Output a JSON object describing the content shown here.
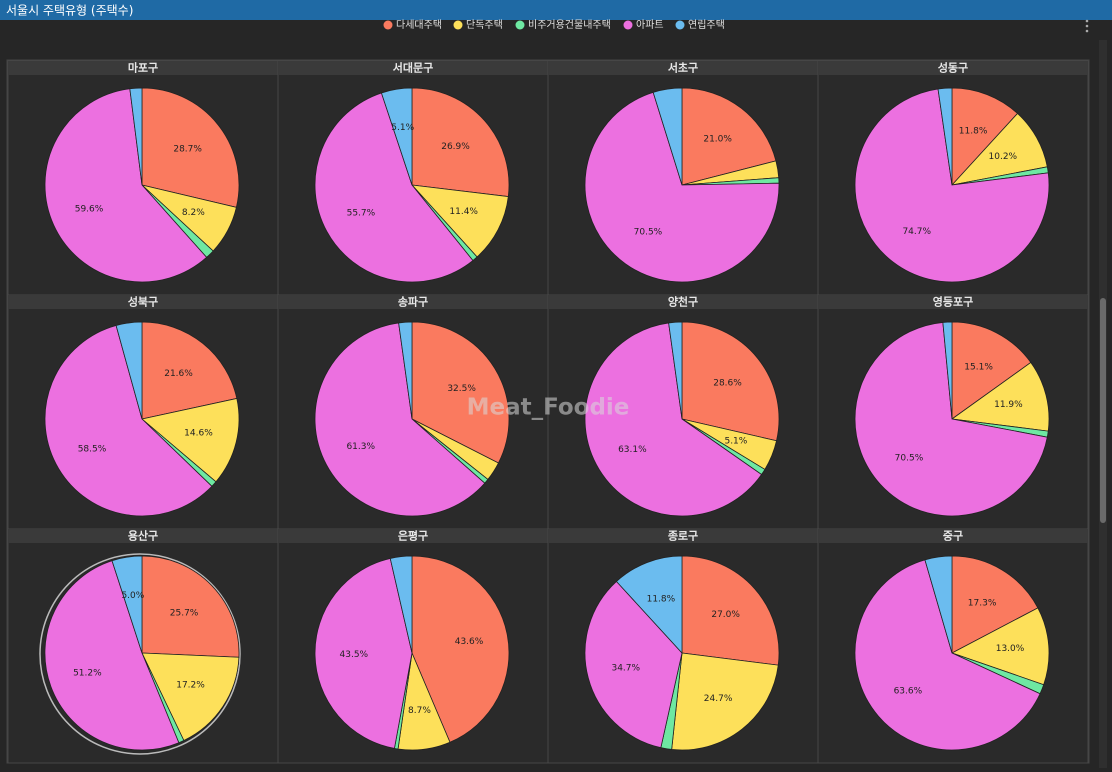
{
  "header": {
    "title": "서울시 주택유형 (주택수)"
  },
  "watermark": "Meat_Foodie",
  "chart_data": [
    {
      "type": "pie",
      "title": "마포구",
      "categories": [
        "다세대주택",
        "단독주택",
        "비주거용건물내주택",
        "아파트",
        "연립주택"
      ],
      "colors": [
        "#fa7a5f",
        "#fde05a",
        "#6ee8a2",
        "#ec70e0",
        "#6bbcef"
      ],
      "values": [
        28.7,
        8.2,
        1.5,
        59.6,
        2.0
      ],
      "value_labels": [
        "28.7%",
        "8.2%",
        null,
        "59.6%",
        null
      ]
    },
    {
      "type": "pie",
      "title": "서대문구",
      "categories": [
        "다세대주택",
        "단독주택",
        "비주거용건물내주택",
        "아파트",
        "연립주택"
      ],
      "colors": [
        "#fa7a5f",
        "#fde05a",
        "#6ee8a2",
        "#ec70e0",
        "#6bbcef"
      ],
      "values": [
        26.9,
        11.4,
        0.9,
        55.7,
        5.1
      ],
      "value_labels": [
        "26.9%",
        "11.4%",
        null,
        "55.7%",
        "5.1%"
      ]
    },
    {
      "type": "pie",
      "title": "서초구",
      "categories": [
        "다세대주택",
        "단독주택",
        "비주거용건물내주택",
        "아파트",
        "연립주택"
      ],
      "colors": [
        "#fa7a5f",
        "#fde05a",
        "#6ee8a2",
        "#ec70e0",
        "#6bbcef"
      ],
      "values": [
        21.0,
        2.8,
        0.9,
        70.5,
        4.8
      ],
      "value_labels": [
        "21.0%",
        null,
        null,
        "70.5%",
        null
      ]
    },
    {
      "type": "pie",
      "title": "성동구",
      "categories": [
        "다세대주택",
        "단독주택",
        "비주거용건물내주택",
        "아파트",
        "연립주택"
      ],
      "colors": [
        "#fa7a5f",
        "#fde05a",
        "#6ee8a2",
        "#ec70e0",
        "#6bbcef"
      ],
      "values": [
        11.8,
        10.2,
        1.0,
        74.7,
        2.3
      ],
      "value_labels": [
        "11.8%",
        "10.2%",
        null,
        "74.7%",
        null
      ]
    },
    {
      "type": "pie",
      "title": "성북구",
      "categories": [
        "다세대주택",
        "단독주택",
        "비주거용건물내주택",
        "아파트",
        "연립주택"
      ],
      "colors": [
        "#fa7a5f",
        "#fde05a",
        "#6ee8a2",
        "#ec70e0",
        "#6bbcef"
      ],
      "values": [
        21.6,
        14.6,
        1.0,
        58.5,
        4.3
      ],
      "value_labels": [
        "21.6%",
        "14.6%",
        null,
        "58.5%",
        null
      ]
    },
    {
      "type": "pie",
      "title": "송파구",
      "categories": [
        "다세대주택",
        "단독주택",
        "비주거용건물내주택",
        "아파트",
        "연립주택"
      ],
      "colors": [
        "#fa7a5f",
        "#fde05a",
        "#6ee8a2",
        "#ec70e0",
        "#6bbcef"
      ],
      "values": [
        32.5,
        3.2,
        0.8,
        61.3,
        2.2
      ],
      "value_labels": [
        "32.5%",
        null,
        null,
        "61.3%",
        null
      ]
    },
    {
      "type": "pie",
      "title": "양천구",
      "categories": [
        "다세대주택",
        "단독주택",
        "비주거용건물내주택",
        "아파트",
        "연립주택"
      ],
      "colors": [
        "#fa7a5f",
        "#fde05a",
        "#6ee8a2",
        "#ec70e0",
        "#6bbcef"
      ],
      "values": [
        28.6,
        5.1,
        1.0,
        63.1,
        2.2
      ],
      "value_labels": [
        "28.6%",
        "5.1%",
        null,
        "63.1%",
        null
      ]
    },
    {
      "type": "pie",
      "title": "영등포구",
      "categories": [
        "다세대주택",
        "단독주택",
        "비주거용건물내주택",
        "아파트",
        "연립주택"
      ],
      "colors": [
        "#fa7a5f",
        "#fde05a",
        "#6ee8a2",
        "#ec70e0",
        "#6bbcef"
      ],
      "values": [
        15.1,
        11.9,
        1.0,
        70.5,
        1.5
      ],
      "value_labels": [
        "15.1%",
        "11.9%",
        null,
        "70.5%",
        null
      ]
    },
    {
      "type": "pie",
      "title": "용산구",
      "categories": [
        "다세대주택",
        "단독주택",
        "비주거용건물내주택",
        "아파트",
        "연립주택"
      ],
      "colors": [
        "#fa7a5f",
        "#fde05a",
        "#6ee8a2",
        "#ec70e0",
        "#6bbcef"
      ],
      "values": [
        25.7,
        17.2,
        0.9,
        51.2,
        5.0
      ],
      "value_labels": [
        "25.7%",
        "17.2%",
        null,
        "51.2%",
        "5.0%"
      ]
    },
    {
      "type": "pie",
      "title": "은평구",
      "categories": [
        "다세대주택",
        "단독주택",
        "비주거용건물내주택",
        "아파트",
        "연립주택"
      ],
      "colors": [
        "#fa7a5f",
        "#fde05a",
        "#6ee8a2",
        "#ec70e0",
        "#6bbcef"
      ],
      "values": [
        43.6,
        8.7,
        0.6,
        43.5,
        3.6
      ],
      "value_labels": [
        "43.6%",
        "8.7%",
        null,
        "43.5%",
        null
      ]
    },
    {
      "type": "pie",
      "title": "종로구",
      "categories": [
        "다세대주택",
        "단독주택",
        "비주거용건물내주택",
        "아파트",
        "연립주택"
      ],
      "colors": [
        "#fa7a5f",
        "#fde05a",
        "#6ee8a2",
        "#ec70e0",
        "#6bbcef"
      ],
      "values": [
        27.0,
        24.7,
        1.8,
        34.7,
        11.8
      ],
      "value_labels": [
        "27.0%",
        "24.7%",
        null,
        "34.7%",
        "11.8%"
      ]
    },
    {
      "type": "pie",
      "title": "중구",
      "categories": [
        "다세대주택",
        "단독주택",
        "비주거용건물내주택",
        "아파트",
        "연립주택"
      ],
      "colors": [
        "#fa7a5f",
        "#fde05a",
        "#6ee8a2",
        "#ec70e0",
        "#6bbcef"
      ],
      "values": [
        17.3,
        13.0,
        1.6,
        63.6,
        4.5
      ],
      "value_labels": [
        "17.3%",
        "13.0%",
        null,
        "63.6%",
        null
      ]
    }
  ]
}
